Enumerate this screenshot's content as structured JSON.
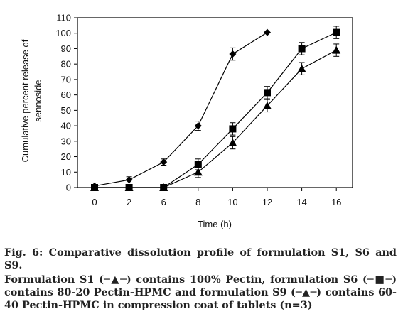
{
  "chart_data": {
    "type": "line",
    "xlabel": "Time (h)",
    "ylabel_lines": [
      "Cumulative percent release of",
      "sennoside"
    ],
    "x_ticks": [
      "0",
      "2",
      "6",
      "8",
      "10",
      "12",
      "14",
      "16"
    ],
    "ylim": [
      0,
      110
    ],
    "y_ticks": [
      0,
      10,
      20,
      30,
      40,
      50,
      60,
      70,
      80,
      90,
      100,
      110
    ],
    "grid": false,
    "legend": "none",
    "series": [
      {
        "marker": "diamond",
        "x_index": [
          0,
          1,
          2,
          3,
          4,
          5
        ],
        "values": [
          1,
          5,
          16.5,
          40,
          86.5,
          100.5
        ],
        "errors": [
          2,
          2,
          2,
          3,
          4,
          0
        ]
      },
      {
        "marker": "square",
        "x_index": [
          0,
          1,
          2,
          3,
          4,
          5,
          6,
          7
        ],
        "values": [
          0,
          0,
          0,
          15,
          38,
          61.5,
          90,
          100.5
        ],
        "errors": [
          2,
          0,
          0,
          3.5,
          4,
          4,
          4,
          4
        ]
      },
      {
        "marker": "triangle",
        "x_index": [
          0,
          1,
          2,
          3,
          4,
          5,
          6,
          7
        ],
        "values": [
          0,
          0,
          0,
          10,
          29,
          53,
          77,
          89
        ],
        "errors": [
          0,
          0,
          0,
          3.5,
          4,
          4,
          4,
          4
        ]
      }
    ]
  },
  "caption": {
    "figure_line": "Fig. 6: Comparative dissolution profile of formulation S1, S6 and S9.",
    "legend_line": "Formulation S1 (─▲─) contains 100% Pectin, formulation S6 (─■─) contains 80-20 Pectin-HPMC and formulation S9 (─▲─) contains 60-40 Pectin-HPMC in compression coat of tablets (n=3)"
  }
}
